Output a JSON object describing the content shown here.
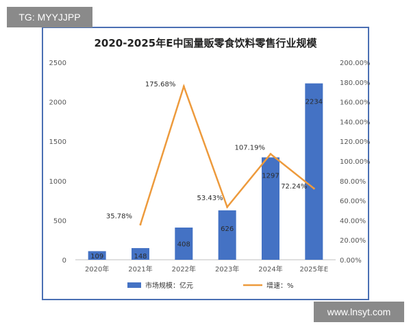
{
  "overlay": {
    "tag_label": "TG: MYYJJPP",
    "site_label": "www.lnsyt.com"
  },
  "chart_data": {
    "type": "bar",
    "title": "2020-2025年E中国量贩零食饮料零售行业规模",
    "categories": [
      "2020年",
      "2021年",
      "2022年",
      "2023年",
      "2024年",
      "2025年E"
    ],
    "series": [
      {
        "name": "市场规模：亿元",
        "type": "bar",
        "axis": "left",
        "color": "#4472c4",
        "values": [
          109,
          148,
          408,
          626,
          1297,
          2234
        ],
        "labels": [
          "109",
          "148",
          "408",
          "626",
          "1297",
          "2234"
        ]
      },
      {
        "name": "增速：%",
        "type": "line",
        "axis": "right",
        "color": "#ed9a3c",
        "x": [
          "2021年",
          "2022年",
          "2023年",
          "2024年",
          "2025年E"
        ],
        "values": [
          35.78,
          175.68,
          53.43,
          107.19,
          72.24
        ],
        "labels": [
          "35.78%",
          "175.68%",
          "53.43%",
          "107.19%",
          "72.24%"
        ]
      }
    ],
    "y_left": {
      "min": 0,
      "max": 2500,
      "ticks": [
        "0",
        "500",
        "1000",
        "1500",
        "2000",
        "2500"
      ]
    },
    "y_right": {
      "min": 0,
      "max": 200,
      "ticks": [
        "0.00%",
        "20.00%",
        "40.00%",
        "60.00%",
        "80.00%",
        "100.00%",
        "120.00%",
        "140.00%",
        "160.00%",
        "180.00%",
        "200.00%"
      ]
    },
    "grid": false,
    "legend": "bottom"
  }
}
